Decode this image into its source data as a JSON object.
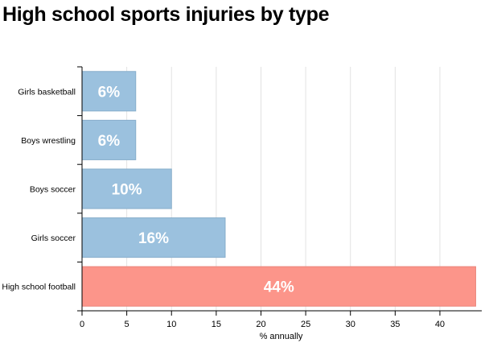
{
  "chart_data": {
    "type": "bar",
    "orientation": "horizontal",
    "title": "High school sports injuries by type",
    "categories": [
      "Girls basketball",
      "Boys wrestling",
      "Boys soccer",
      "Girls soccer",
      "High school football"
    ],
    "values": [
      6,
      6,
      10,
      16,
      44
    ],
    "data_labels": [
      "6%",
      "6%",
      "10%",
      "16%",
      "44%"
    ],
    "bar_colors": [
      "#9bc1de",
      "#9bc1de",
      "#9bc1de",
      "#9bc1de",
      "#fc958a"
    ],
    "xlabel": "% annually",
    "ylabel": "",
    "xlim": [
      0,
      44.5
    ],
    "xticks": [
      0,
      5,
      10,
      15,
      20,
      25,
      30,
      35,
      40
    ],
    "grid": true,
    "legend": "none"
  }
}
